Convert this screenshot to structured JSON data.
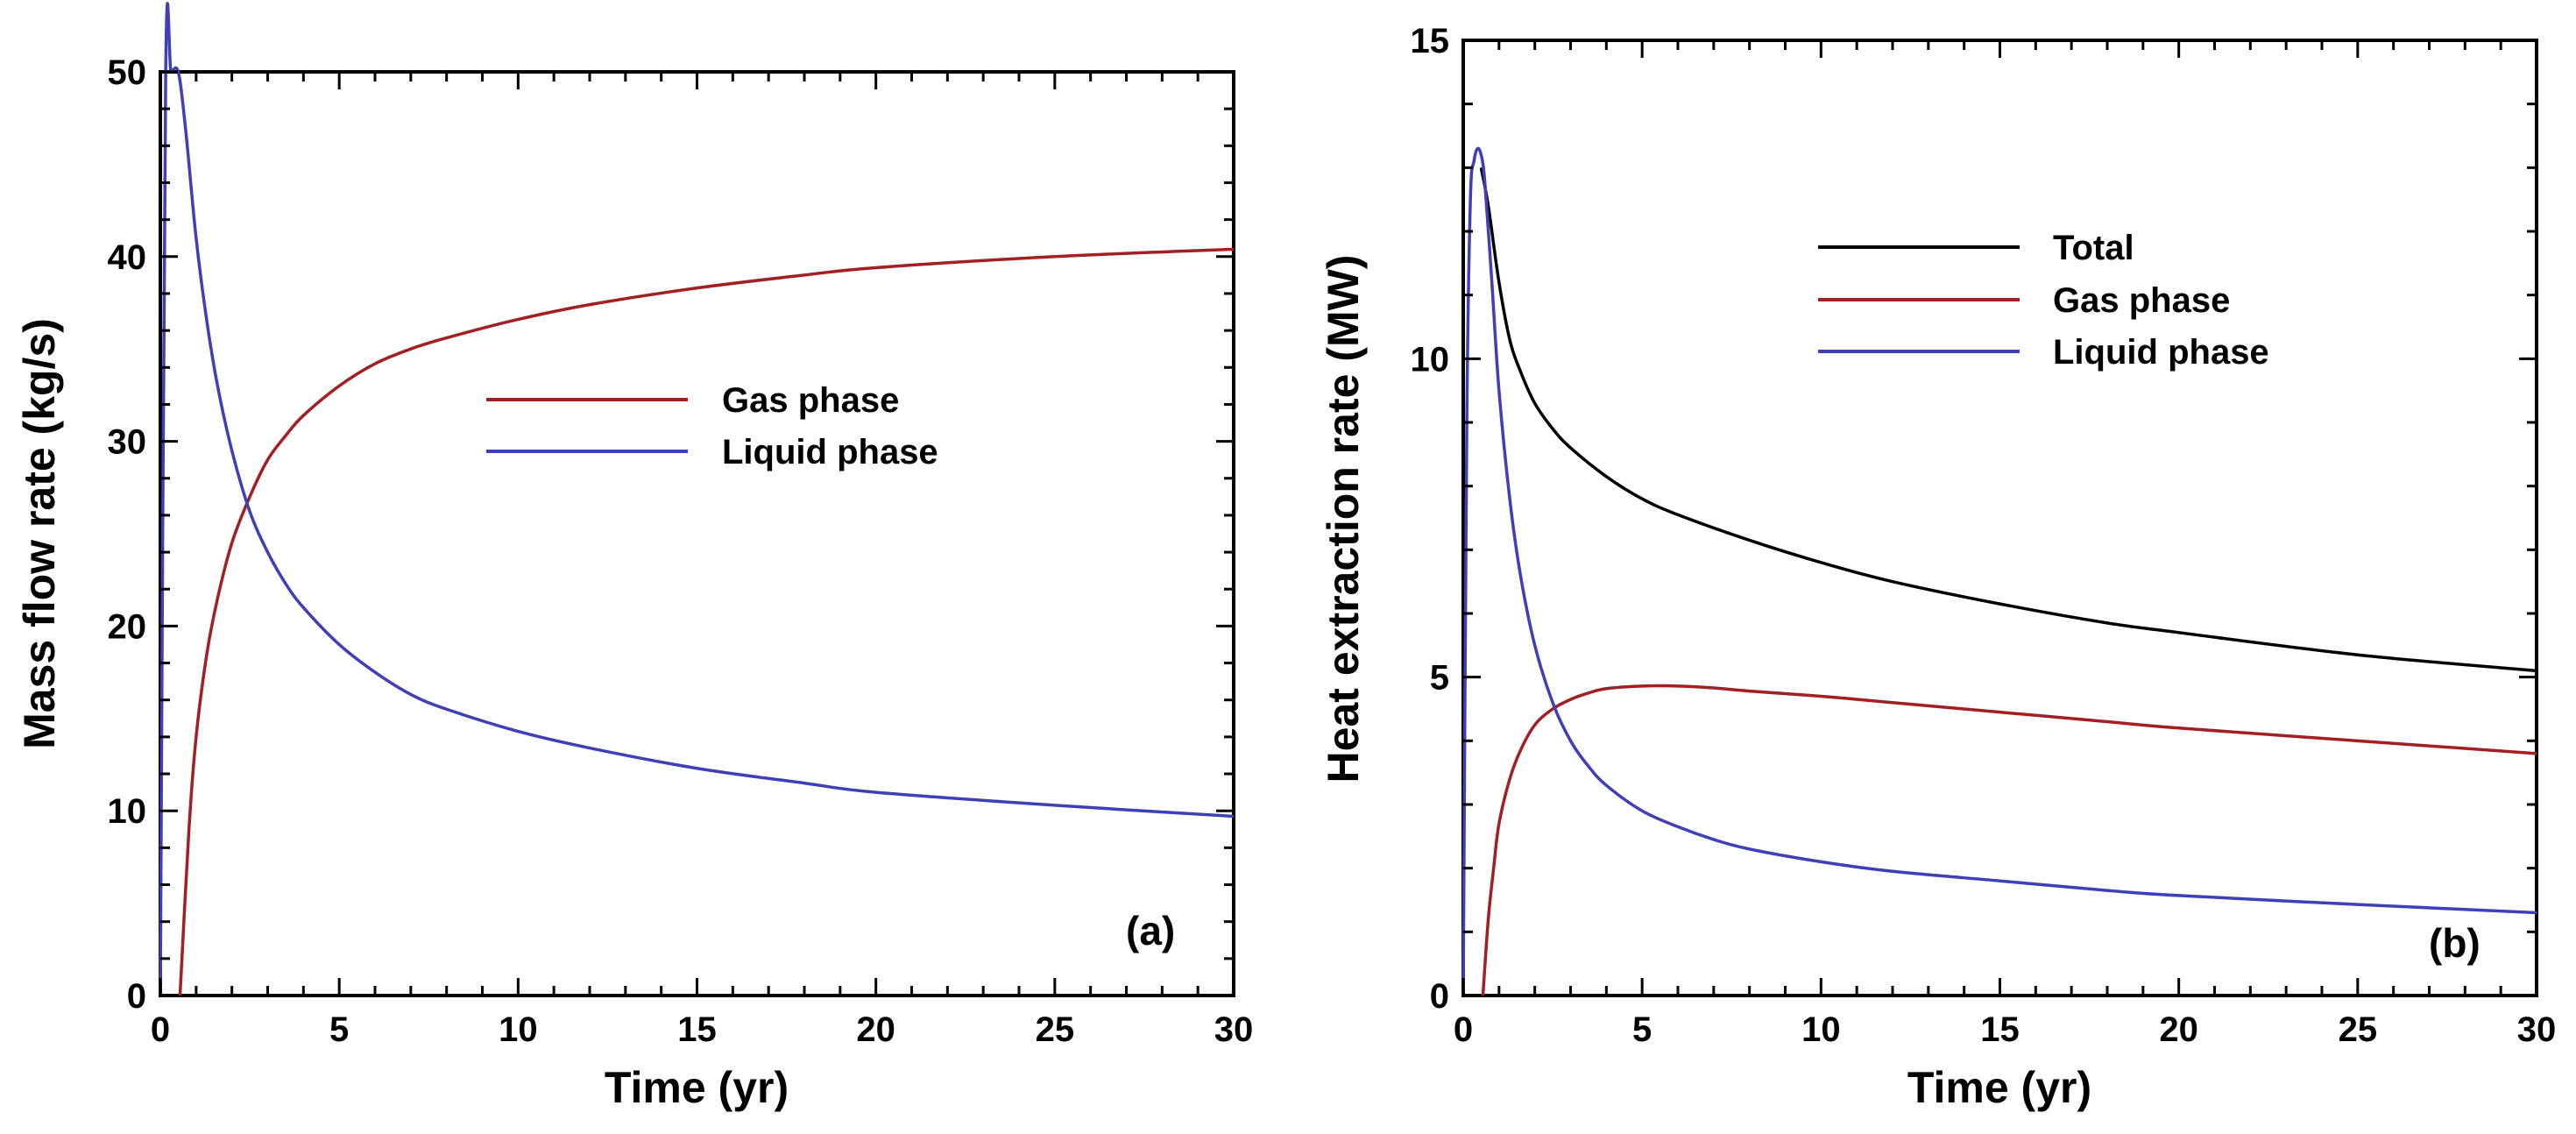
{
  "colors": {
    "total": "#000000",
    "gas": "#a21f24",
    "liquid": "#3f3fb8",
    "axis": "#000000"
  },
  "chart_data": [
    {
      "id": "panel-a",
      "type": "line",
      "panel_label": "(a)",
      "xlabel": "Time (yr)",
      "ylabel": "Mass flow rate (kg/s)",
      "xlim": [
        0,
        30
      ],
      "ylim": [
        0,
        50
      ],
      "xticks": [
        0,
        5,
        10,
        15,
        20,
        25,
        30
      ],
      "yticks": [
        0,
        10,
        20,
        30,
        40,
        50
      ],
      "legend_position": "center-right",
      "series": [
        {
          "name": "Gas phase",
          "color_key": "gas",
          "x": [
            0.55,
            0.8,
            1,
            1.3,
            1.6,
            2,
            2.5,
            3,
            3.5,
            4,
            5,
            6,
            7,
            8,
            10,
            12,
            15,
            18,
            20,
            25,
            30
          ],
          "y": [
            0,
            9,
            14,
            18.5,
            21.5,
            24.5,
            27,
            29,
            30.3,
            31.4,
            33,
            34.2,
            35,
            35.6,
            36.6,
            37.4,
            38.3,
            39,
            39.4,
            40,
            40.4
          ]
        },
        {
          "name": "Liquid phase",
          "color_key": "liquid",
          "x": [
            0,
            0.15,
            0.3,
            0.5,
            0.7,
            1,
            1.3,
            1.6,
            2,
            2.5,
            3,
            3.5,
            4,
            5,
            6,
            7,
            8,
            10,
            12,
            15,
            18,
            20,
            25,
            30
          ],
          "y": [
            0,
            50,
            50,
            50,
            47,
            41,
            36.5,
            33,
            29.5,
            26.2,
            24,
            22.3,
            21,
            19,
            17.5,
            16.3,
            15.5,
            14.3,
            13.4,
            12.3,
            11.5,
            11,
            10.3,
            9.7
          ]
        }
      ]
    },
    {
      "id": "panel-b",
      "type": "line",
      "panel_label": "(b)",
      "xlabel": "Time (yr)",
      "ylabel": "Heat extraction rate (MW)",
      "xlim": [
        0,
        30
      ],
      "ylim": [
        0,
        15
      ],
      "xticks": [
        0,
        5,
        10,
        15,
        20,
        25,
        30
      ],
      "yticks": [
        0,
        5,
        10,
        15
      ],
      "legend_position": "top-right",
      "series": [
        {
          "name": "Total",
          "color_key": "total",
          "x": [
            0.5,
            0.7,
            1,
            1.3,
            1.6,
            2,
            2.5,
            3,
            4,
            5,
            6,
            8,
            10,
            12,
            15,
            18,
            20,
            25,
            30
          ],
          "y": [
            13,
            12.4,
            11.2,
            10.3,
            9.8,
            9.3,
            8.9,
            8.6,
            8.15,
            7.8,
            7.55,
            7.15,
            6.8,
            6.5,
            6.15,
            5.85,
            5.7,
            5.35,
            5.1
          ]
        },
        {
          "name": "Gas phase",
          "color_key": "gas",
          "x": [
            0.55,
            0.7,
            0.85,
            1,
            1.3,
            1.6,
            2,
            2.5,
            3,
            3.5,
            4,
            5,
            6,
            7,
            8,
            10,
            12,
            15,
            18,
            20,
            25,
            30
          ],
          "y": [
            0,
            1.2,
            2,
            2.7,
            3.4,
            3.85,
            4.25,
            4.5,
            4.65,
            4.75,
            4.82,
            4.86,
            4.86,
            4.83,
            4.78,
            4.7,
            4.6,
            4.45,
            4.3,
            4.2,
            4,
            3.8
          ]
        },
        {
          "name": "Liquid phase",
          "color_key": "liquid",
          "x": [
            0,
            0.1,
            0.2,
            0.3,
            0.4,
            0.5,
            0.6,
            0.8,
            1,
            1.3,
            1.6,
            2,
            2.5,
            3,
            3.5,
            4,
            5,
            6,
            7,
            8,
            10,
            12,
            15,
            18,
            20,
            25,
            30
          ],
          "y": [
            0,
            9,
            12.5,
            13.1,
            13.3,
            13.2,
            12.8,
            11.2,
            9.5,
            7.8,
            6.6,
            5.5,
            4.6,
            4,
            3.6,
            3.3,
            2.9,
            2.65,
            2.45,
            2.3,
            2.1,
            1.95,
            1.8,
            1.65,
            1.57,
            1.43,
            1.3
          ]
        }
      ]
    }
  ]
}
